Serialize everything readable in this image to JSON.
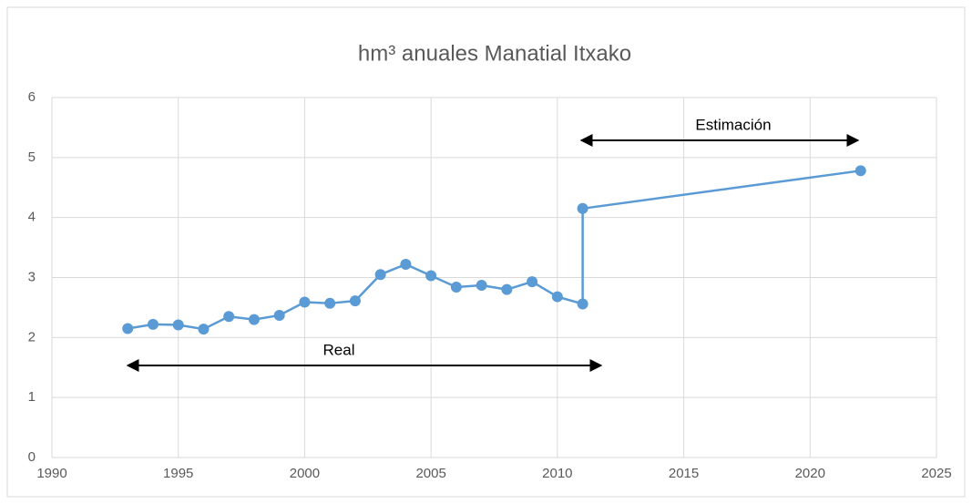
{
  "chart_data": {
    "type": "line",
    "title": "hm³ anuales Manatial Itxako",
    "x": [
      1993,
      1994,
      1995,
      1996,
      1997,
      1998,
      1999,
      2000,
      2001,
      2002,
      2003,
      2004,
      2005,
      2006,
      2007,
      2008,
      2009,
      2010,
      2011,
      2011,
      2022
    ],
    "series": [
      {
        "color": "#5b9bd5",
        "values": [
          2.15,
          2.22,
          2.21,
          2.14,
          2.35,
          2.3,
          2.37,
          2.59,
          2.57,
          2.61,
          3.05,
          3.22,
          3.03,
          2.84,
          2.87,
          2.8,
          2.93,
          2.68,
          2.56,
          4.15,
          4.78
        ]
      }
    ],
    "xlim": [
      1990,
      2025
    ],
    "xticks": [
      1990,
      1995,
      2000,
      2005,
      2010,
      2015,
      2020,
      2025
    ],
    "ylim": [
      0,
      6
    ],
    "yticks": [
      0,
      1,
      2,
      3,
      4,
      5,
      6
    ],
    "grid": true,
    "annotations": [
      "Real",
      "Estimación"
    ]
  }
}
